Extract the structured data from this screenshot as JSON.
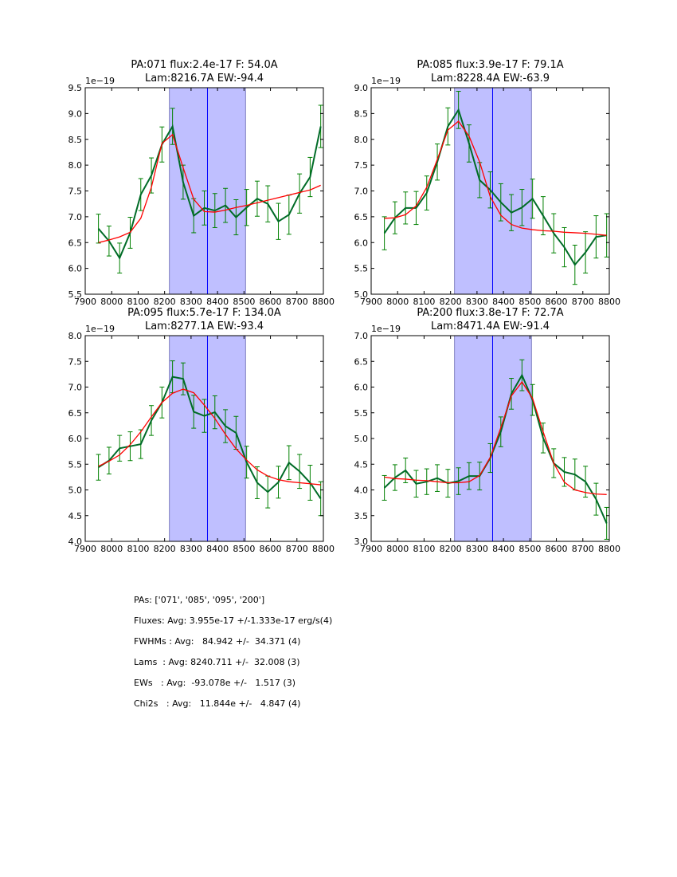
{
  "chart_data": [
    {
      "type": "line",
      "title": [
        "PA:071 flux:2.4e-17 F: 54.0A",
        "Lam:8216.7A EW:-94.4"
      ],
      "offset_label": "1e−19",
      "xlim": [
        7900,
        8800
      ],
      "ylim": [
        5.5,
        9.5
      ],
      "xticks": [
        7900,
        8000,
        8100,
        8200,
        8300,
        8400,
        8500,
        8600,
        8700,
        8800
      ],
      "yticks": [
        5.5,
        6.0,
        6.5,
        7.0,
        7.5,
        8.0,
        8.5,
        9.0,
        9.5
      ],
      "shaded_range": [
        8218,
        8506
      ],
      "vline": 8362,
      "x": [
        7950,
        7990,
        8030,
        8070,
        8110,
        8150,
        8190,
        8230,
        8270,
        8310,
        8350,
        8390,
        8430,
        8470,
        8510,
        8550,
        8590,
        8630,
        8670,
        8710,
        8750,
        8790
      ],
      "series": [
        {
          "name": "data",
          "color": "#006b27",
          "values": [
            6.77,
            6.53,
            6.2,
            6.69,
            7.43,
            7.8,
            8.4,
            8.75,
            7.67,
            7.02,
            7.17,
            7.12,
            7.22,
            6.99,
            7.18,
            7.35,
            7.25,
            6.91,
            7.04,
            7.45,
            7.77,
            8.75
          ],
          "errors": [
            0.28,
            0.29,
            0.29,
            0.3,
            0.31,
            0.34,
            0.34,
            0.35,
            0.33,
            0.33,
            0.33,
            0.33,
            0.33,
            0.34,
            0.35,
            0.34,
            0.35,
            0.35,
            0.38,
            0.38,
            0.38,
            0.41
          ]
        },
        {
          "name": "fit",
          "color": "#ff0000",
          "values": [
            6.5,
            6.55,
            6.61,
            6.7,
            6.97,
            7.57,
            8.42,
            8.59,
            7.95,
            7.34,
            7.1,
            7.09,
            7.13,
            7.18,
            7.22,
            7.27,
            7.32,
            7.37,
            7.42,
            7.47,
            7.52,
            7.61
          ]
        }
      ]
    },
    {
      "type": "line",
      "title": [
        "PA:085 flux:3.9e-17 F: 79.1A",
        "Lam:8228.4A EW:-63.9"
      ],
      "offset_label": "1e−19",
      "xlim": [
        7900,
        8800
      ],
      "ylim": [
        5.0,
        9.0
      ],
      "xticks": [
        7900,
        8000,
        8100,
        8200,
        8300,
        8400,
        8500,
        8600,
        8700,
        8800
      ],
      "yticks": [
        5.0,
        5.5,
        6.0,
        6.5,
        7.0,
        7.5,
        8.0,
        8.5,
        9.0
      ],
      "shaded_range": [
        8215,
        8506
      ],
      "vline": 8359,
      "x": [
        7950,
        7990,
        8030,
        8070,
        8110,
        8150,
        8190,
        8230,
        8270,
        8310,
        8350,
        8390,
        8430,
        8470,
        8510,
        8550,
        8590,
        8630,
        8670,
        8710,
        8750,
        8790
      ],
      "series": [
        {
          "name": "data",
          "color": "#006b27",
          "values": [
            6.18,
            6.48,
            6.67,
            6.67,
            6.96,
            7.56,
            8.25,
            8.57,
            7.92,
            7.21,
            7.02,
            6.78,
            6.58,
            6.68,
            6.85,
            6.52,
            6.18,
            5.91,
            5.57,
            5.81,
            6.11,
            6.14
          ],
          "errors": [
            0.32,
            0.31,
            0.31,
            0.32,
            0.33,
            0.35,
            0.36,
            0.36,
            0.36,
            0.34,
            0.35,
            0.36,
            0.35,
            0.35,
            0.38,
            0.37,
            0.38,
            0.38,
            0.38,
            0.4,
            0.41,
            0.42
          ]
        },
        {
          "name": "fit",
          "color": "#ff0000",
          "values": [
            6.47,
            6.48,
            6.54,
            6.71,
            7.07,
            7.61,
            8.18,
            8.35,
            8.06,
            7.56,
            6.89,
            6.53,
            6.35,
            6.28,
            6.25,
            6.23,
            6.22,
            6.2,
            6.19,
            6.18,
            6.16,
            6.14
          ]
        }
      ]
    },
    {
      "type": "line",
      "title": [
        "PA:095 flux:5.7e-17 F: 134.0A",
        "Lam:8277.1A EW:-93.4"
      ],
      "offset_label": "1e−19",
      "xlim": [
        7900,
        8800
      ],
      "ylim": [
        4.0,
        8.0
      ],
      "xticks": [
        7900,
        8000,
        8100,
        8200,
        8300,
        8400,
        8500,
        8600,
        8700,
        8800
      ],
      "yticks": [
        4.0,
        4.5,
        5.0,
        5.5,
        6.0,
        6.5,
        7.0,
        7.5,
        8.0
      ],
      "shaded_range": [
        8218,
        8506
      ],
      "vline": 8362,
      "x": [
        7950,
        7990,
        8030,
        8070,
        8110,
        8150,
        8190,
        8230,
        8270,
        8310,
        8350,
        8390,
        8430,
        8470,
        8510,
        8550,
        8590,
        8630,
        8670,
        8710,
        8750,
        8790
      ],
      "series": [
        {
          "name": "data",
          "color": "#006b27",
          "values": [
            5.44,
            5.57,
            5.81,
            5.85,
            5.89,
            6.35,
            6.7,
            7.2,
            7.16,
            6.52,
            6.44,
            6.51,
            6.24,
            6.11,
            5.54,
            5.14,
            4.96,
            5.15,
            5.53,
            5.36,
            5.14,
            4.83
          ],
          "errors": [
            0.25,
            0.26,
            0.25,
            0.28,
            0.28,
            0.29,
            0.3,
            0.31,
            0.31,
            0.32,
            0.32,
            0.32,
            0.32,
            0.32,
            0.31,
            0.31,
            0.31,
            0.31,
            0.33,
            0.33,
            0.34,
            0.33
          ]
        },
        {
          "name": "fit",
          "color": "#ff0000",
          "values": [
            5.46,
            5.56,
            5.68,
            5.88,
            6.13,
            6.42,
            6.7,
            6.88,
            6.96,
            6.89,
            6.65,
            6.39,
            6.08,
            5.8,
            5.58,
            5.39,
            5.27,
            5.2,
            5.16,
            5.14,
            5.12,
            5.1
          ]
        }
      ]
    },
    {
      "type": "line",
      "title": [
        "PA:200 flux:3.8e-17 F: 72.7A",
        "Lam:8471.4A EW:-91.4"
      ],
      "offset_label": "1e−19",
      "xlim": [
        7900,
        8800
      ],
      "ylim": [
        3.0,
        7.0
      ],
      "xticks": [
        7900,
        8000,
        8100,
        8200,
        8300,
        8400,
        8500,
        8600,
        8700,
        8800
      ],
      "yticks": [
        3.0,
        3.5,
        4.0,
        4.5,
        5.0,
        5.5,
        6.0,
        6.5,
        7.0
      ],
      "shaded_range": [
        8215,
        8506
      ],
      "vline": 8359,
      "x": [
        7950,
        7990,
        8030,
        8070,
        8110,
        8150,
        8190,
        8230,
        8270,
        8310,
        8350,
        8390,
        8430,
        8470,
        8510,
        8550,
        8590,
        8630,
        8670,
        8710,
        8750,
        8790
      ],
      "series": [
        {
          "name": "data",
          "color": "#006b27",
          "values": [
            4.04,
            4.24,
            4.38,
            4.12,
            4.16,
            4.23,
            4.13,
            4.17,
            4.27,
            4.27,
            4.62,
            5.13,
            5.87,
            6.23,
            5.75,
            5.01,
            4.52,
            4.35,
            4.3,
            4.16,
            3.82,
            3.35
          ],
          "errors": [
            0.24,
            0.25,
            0.24,
            0.26,
            0.25,
            0.26,
            0.27,
            0.26,
            0.26,
            0.27,
            0.28,
            0.29,
            0.3,
            0.3,
            0.3,
            0.29,
            0.28,
            0.28,
            0.3,
            0.3,
            0.31,
            0.31
          ]
        },
        {
          "name": "fit",
          "color": "#ff0000",
          "values": [
            4.25,
            4.22,
            4.21,
            4.19,
            4.18,
            4.16,
            4.14,
            4.14,
            4.16,
            4.28,
            4.63,
            5.21,
            5.83,
            6.1,
            5.78,
            5.13,
            4.52,
            4.15,
            4.0,
            3.95,
            3.92,
            3.91
          ]
        }
      ]
    }
  ],
  "colors": {
    "shade": "#bfbfff",
    "shade_edge": "#7f7fbf",
    "vline": "#0000ff",
    "errorbar": "#008000"
  },
  "stats": [
    "PAs: ['071', '085', '095', '200']",
    "Fluxes: Avg: 3.955e-17 +/-1.333e-17 erg/s(4)",
    "FWHMs : Avg:   84.942 +/-  34.371 (4)",
    "Lams  : Avg: 8240.711 +/-  32.008 (3)",
    "EWs   : Avg:  -93.078e +/-   1.517 (3)",
    "Chi2s   : Avg:   11.844e +/-   4.847 (4)"
  ]
}
